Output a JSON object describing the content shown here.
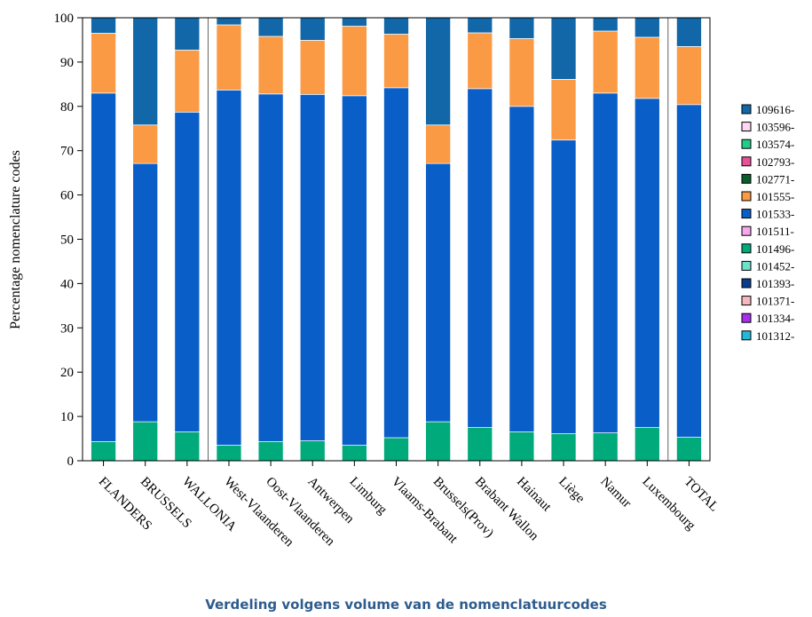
{
  "chart_data": {
    "type": "bar",
    "stacked": true,
    "title": "",
    "caption": "Verdeling volgens volume van de nomenclatuurcodes",
    "xlabel": "",
    "ylabel": "Percentage nomenclature codes",
    "ylim": [
      0,
      100
    ],
    "yticks": [
      0,
      10,
      20,
      30,
      40,
      50,
      60,
      70,
      80,
      90,
      100
    ],
    "grid": false,
    "legend_position": "right",
    "categories": [
      "FLANDERS",
      "BRUSSELS",
      "WALLONIA",
      "West-Vlaanderen",
      "Oost-Vlaanderen",
      "Antwerpen",
      "Limburg",
      "Vlaams-Brabant",
      "Brussels(Prov)",
      "Brabant Wallon",
      "Hainaut",
      "Liège",
      "Namur",
      "Luxembourg",
      "TOTAL"
    ],
    "separators_after": [
      2,
      13
    ],
    "series": [
      {
        "name": "101496-",
        "color": "#00aa7a",
        "values": [
          4.3,
          8.8,
          6.5,
          3.5,
          4.3,
          4.5,
          3.5,
          5.2,
          8.8,
          7.5,
          6.5,
          6.1,
          6.3,
          7.5,
          5.3
        ]
      },
      {
        "name": "101533-",
        "color": "#0a5ec8",
        "values": [
          78.7,
          58.3,
          72.2,
          80.2,
          78.5,
          78.2,
          78.9,
          79.0,
          58.3,
          76.5,
          73.5,
          66.3,
          76.7,
          74.3,
          75.1
        ]
      },
      {
        "name": "101555-",
        "color": "#fb9a44",
        "values": [
          13.5,
          8.7,
          14.0,
          14.7,
          13.0,
          12.2,
          15.7,
          12.1,
          8.7,
          12.6,
          15.3,
          13.7,
          14.0,
          13.8,
          13.1
        ]
      },
      {
        "name": "109616-",
        "color": "#1167a7",
        "values": [
          3.5,
          24.2,
          7.3,
          1.6,
          4.2,
          5.1,
          1.9,
          3.7,
          24.2,
          3.4,
          4.7,
          13.9,
          3.0,
          4.4,
          6.5
        ]
      }
    ],
    "legend": [
      {
        "name": "109616-",
        "color": "#1167a7"
      },
      {
        "name": "103596-",
        "color": "#fbd8f4"
      },
      {
        "name": "103574-",
        "color": "#22cc88"
      },
      {
        "name": "102793-",
        "color": "#e8519a"
      },
      {
        "name": "102771-",
        "color": "#0b5e2b"
      },
      {
        "name": "101555-",
        "color": "#fb9a44"
      },
      {
        "name": "101533-",
        "color": "#0a5ec8"
      },
      {
        "name": "101511-",
        "color": "#f7a8ec"
      },
      {
        "name": "101496-",
        "color": "#00aa7a"
      },
      {
        "name": "101452-",
        "color": "#6fe0cc"
      },
      {
        "name": "101393-",
        "color": "#0b3b8c"
      },
      {
        "name": "101371-",
        "color": "#f6b8c0"
      },
      {
        "name": "101334-",
        "color": "#a530e8"
      },
      {
        "name": "101312-",
        "color": "#22b8d8"
      }
    ]
  }
}
